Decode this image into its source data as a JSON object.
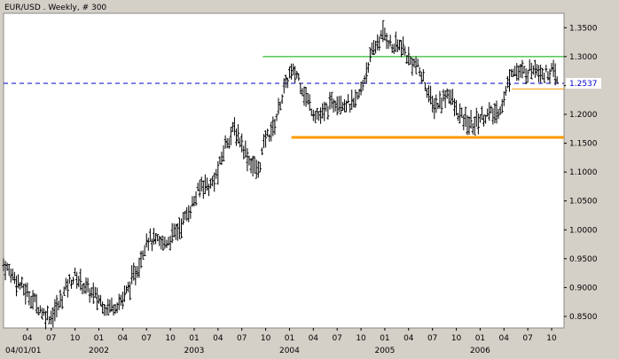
{
  "chart_data": {
    "type": "ohlc",
    "title": "EUR/USD . Weekly, # 300",
    "ylim": [
      0.83,
      1.375
    ],
    "y_ticks": [
      "1.3500",
      "1.3000",
      "1.2500",
      "1.2000",
      "1.1500",
      "1.1000",
      "1.0500",
      "1.0000",
      "0.9500",
      "0.9000",
      "0.8500"
    ],
    "y_tick_values": [
      1.35,
      1.3,
      1.25,
      1.2,
      1.15,
      1.1,
      1.05,
      1.0,
      0.95,
      0.9,
      0.85
    ],
    "x_ticks": [
      {
        "label": "04",
        "t": 2001.25
      },
      {
        "label": "07",
        "t": 2001.5
      },
      {
        "label": "10",
        "t": 2001.75
      },
      {
        "label": "01",
        "t": 2002.0
      },
      {
        "label": "04",
        "t": 2002.25
      },
      {
        "label": "07",
        "t": 2002.5
      },
      {
        "label": "10",
        "t": 2002.75
      },
      {
        "label": "01",
        "t": 2003.0
      },
      {
        "label": "04",
        "t": 2003.25
      },
      {
        "label": "07",
        "t": 2003.5
      },
      {
        "label": "10",
        "t": 2003.75
      },
      {
        "label": "01",
        "t": 2004.0
      },
      {
        "label": "04",
        "t": 2004.25
      },
      {
        "label": "07",
        "t": 2004.5
      },
      {
        "label": "10",
        "t": 2004.75
      },
      {
        "label": "01",
        "t": 2005.0
      },
      {
        "label": "04",
        "t": 2005.25
      },
      {
        "label": "07",
        "t": 2005.5
      },
      {
        "label": "10",
        "t": 2005.75
      },
      {
        "label": "01",
        "t": 2006.0
      },
      {
        "label": "04",
        "t": 2006.25
      },
      {
        "label": "07",
        "t": 2006.5
      },
      {
        "label": "10",
        "t": 2006.75
      }
    ],
    "x_year_labels": [
      {
        "label": "04/01/01",
        "t": 2001.0
      },
      {
        "label": "2002",
        "t": 2002.0
      },
      {
        "label": "2003",
        "t": 2003.0
      },
      {
        "label": "2004",
        "t": 2004.0
      },
      {
        "label": "2005",
        "t": 2005.0
      },
      {
        "label": "2006",
        "t": 2006.0
      }
    ],
    "xlim": [
      2001.0,
      2006.88
    ],
    "current_price": {
      "value": 1.2537,
      "label": "1.2537",
      "color": "#0000cc"
    },
    "price_path": [
      [
        2001.0,
        0.94
      ],
      [
        2001.08,
        0.925
      ],
      [
        2001.17,
        0.905
      ],
      [
        2001.25,
        0.89
      ],
      [
        2001.33,
        0.875
      ],
      [
        2001.42,
        0.855
      ],
      [
        2001.5,
        0.85
      ],
      [
        2001.58,
        0.87
      ],
      [
        2001.67,
        0.905
      ],
      [
        2001.75,
        0.92
      ],
      [
        2001.83,
        0.905
      ],
      [
        2001.92,
        0.89
      ],
      [
        2002.0,
        0.88
      ],
      [
        2002.08,
        0.865
      ],
      [
        2002.17,
        0.87
      ],
      [
        2002.25,
        0.88
      ],
      [
        2002.33,
        0.905
      ],
      [
        2002.42,
        0.94
      ],
      [
        2002.5,
        0.985
      ],
      [
        2002.58,
        0.98
      ],
      [
        2002.67,
        0.975
      ],
      [
        2002.75,
        0.985
      ],
      [
        2002.83,
        1.0
      ],
      [
        2002.92,
        1.025
      ],
      [
        2003.0,
        1.05
      ],
      [
        2003.08,
        1.08
      ],
      [
        2003.17,
        1.075
      ],
      [
        2003.25,
        1.1
      ],
      [
        2003.33,
        1.15
      ],
      [
        2003.42,
        1.175
      ],
      [
        2003.5,
        1.15
      ],
      [
        2003.58,
        1.12
      ],
      [
        2003.67,
        1.1
      ],
      [
        2003.75,
        1.16
      ],
      [
        2003.83,
        1.175
      ],
      [
        2003.92,
        1.23
      ],
      [
        2004.0,
        1.27
      ],
      [
        2004.08,
        1.27
      ],
      [
        2004.17,
        1.23
      ],
      [
        2004.25,
        1.205
      ],
      [
        2004.33,
        1.195
      ],
      [
        2004.42,
        1.215
      ],
      [
        2004.5,
        1.225
      ],
      [
        2004.58,
        1.22
      ],
      [
        2004.67,
        1.215
      ],
      [
        2004.75,
        1.24
      ],
      [
        2004.83,
        1.29
      ],
      [
        2004.92,
        1.325
      ],
      [
        2005.0,
        1.34
      ],
      [
        2005.08,
        1.315
      ],
      [
        2005.17,
        1.32
      ],
      [
        2005.25,
        1.295
      ],
      [
        2005.33,
        1.285
      ],
      [
        2005.42,
        1.255
      ],
      [
        2005.5,
        1.215
      ],
      [
        2005.58,
        1.22
      ],
      [
        2005.67,
        1.24
      ],
      [
        2005.75,
        1.205
      ],
      [
        2005.83,
        1.19
      ],
      [
        2005.92,
        1.18
      ],
      [
        2006.0,
        1.195
      ],
      [
        2006.08,
        1.2
      ],
      [
        2006.17,
        1.2
      ],
      [
        2006.25,
        1.225
      ],
      [
        2006.33,
        1.28
      ],
      [
        2006.42,
        1.27
      ],
      [
        2006.5,
        1.275
      ],
      [
        2006.58,
        1.285
      ],
      [
        2006.67,
        1.27
      ],
      [
        2006.75,
        1.275
      ],
      [
        2006.82,
        1.255
      ]
    ],
    "lines": [
      {
        "kind": "hline",
        "y": 1.3,
        "x0": 2003.72,
        "x1": 2006.88,
        "color": "#00aa00",
        "width": 1
      },
      {
        "kind": "hline",
        "y": 1.16,
        "x0": 2004.02,
        "x1": 2006.88,
        "color": "#ff9900",
        "width": 3
      },
      {
        "kind": "hline",
        "y": 1.244,
        "x0": 2006.33,
        "x1": 2006.88,
        "color": "#ff9900",
        "width": 1
      }
    ],
    "grid": false,
    "legend": "none"
  }
}
